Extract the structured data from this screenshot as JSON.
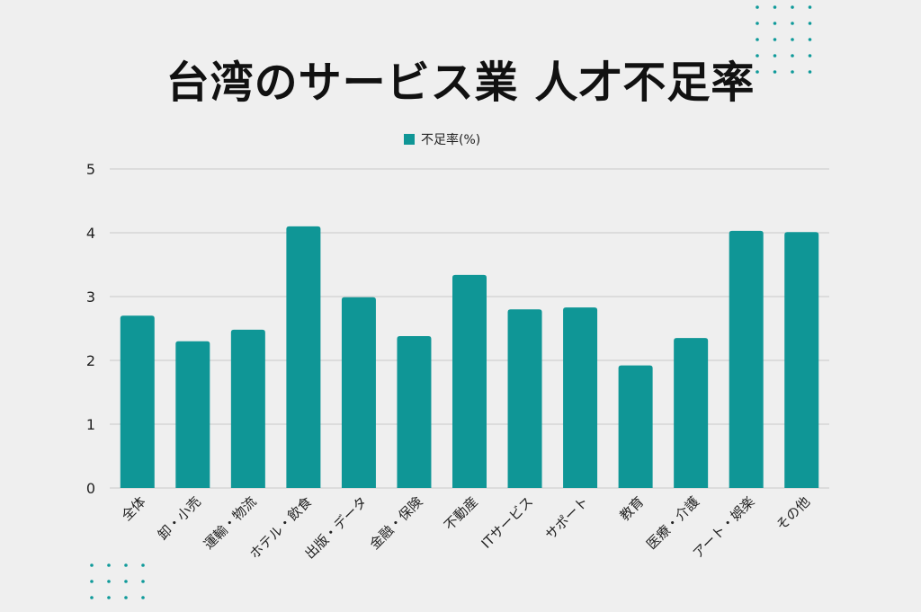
{
  "chart_data": {
    "type": "bar",
    "title": "台湾のサービス業 人才不足率",
    "categories": [
      "全体",
      "卸・小売",
      "運輸・物流",
      "ホテル・飲食",
      "出版・データ",
      "金融・保険",
      "不動産",
      "ITサービス",
      "サポート",
      "教育",
      "医療・介護",
      "アート・娯楽",
      "その他"
    ],
    "series": [
      {
        "name": "不足率(%)",
        "values": [
          2.7,
          2.3,
          2.48,
          4.1,
          2.99,
          2.38,
          3.34,
          2.8,
          2.83,
          1.92,
          2.35,
          4.03,
          4.01
        ]
      }
    ],
    "xlabel": "",
    "ylabel": "",
    "ylim": [
      0,
      5
    ],
    "yticks": [
      0,
      1,
      2,
      3,
      4,
      5
    ],
    "grid": true,
    "legend": "top-center",
    "colors": {
      "bar": "#0f9696",
      "grid": "#c8c8c8",
      "text": "#222222",
      "background": "#efefef",
      "dots": "#0f9a9a"
    }
  }
}
